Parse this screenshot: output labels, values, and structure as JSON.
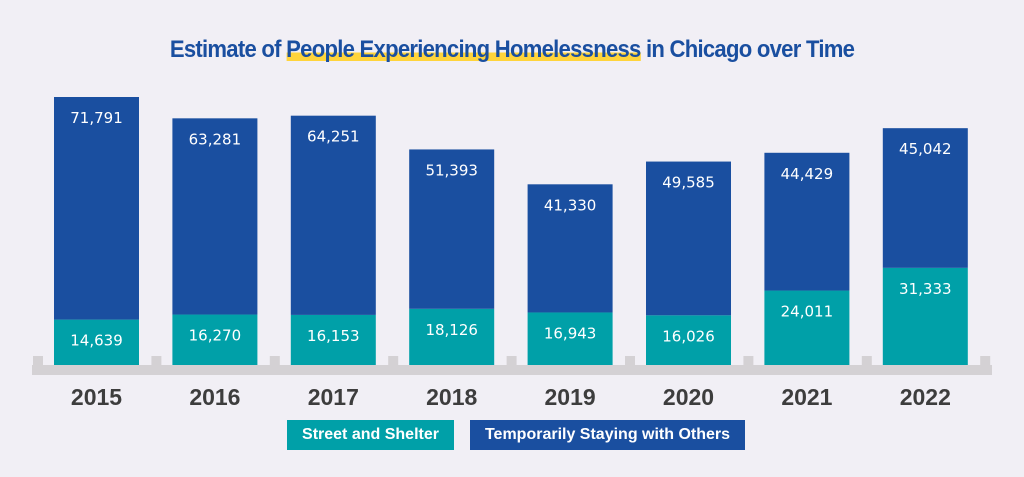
{
  "chart_data": {
    "type": "bar",
    "stacked": true,
    "title_parts": [
      "Estimate of ",
      "People Experiencing Homelessness",
      " in Chicago over Time"
    ],
    "categories": [
      "2015",
      "2016",
      "2017",
      "2018",
      "2019",
      "2020",
      "2021",
      "2022"
    ],
    "series": [
      {
        "name": "Street and Shelter",
        "color": "#00a0a8",
        "values": [
          14639,
          16270,
          16153,
          18126,
          16943,
          16026,
          24011,
          31333
        ]
      },
      {
        "name": "Temporarily Staying with Others",
        "color": "#1a4fa0",
        "values": [
          71791,
          63281,
          64251,
          51393,
          41330,
          49585,
          44429,
          45042
        ]
      }
    ],
    "value_labels": {
      "Street and Shelter": [
        "14,639",
        "16,270",
        "16,153",
        "18,126",
        "16,943",
        "16,026",
        "24,011",
        "31,333"
      ],
      "Temporarily Staying with Others": [
        "71,791",
        "63,281",
        "64,251",
        "51,393",
        "41,330",
        "49,585",
        "44,429",
        "45,042"
      ]
    },
    "ylim": [
      0,
      86430
    ],
    "grid": false,
    "legend_placement": "bottom-center",
    "colors": {
      "background": "#f1eff5",
      "title": "#1a4fa0",
      "highlight": "#ffd43b",
      "baseline": "#d4d1d4",
      "year_labels": "#3d3d3d"
    }
  }
}
